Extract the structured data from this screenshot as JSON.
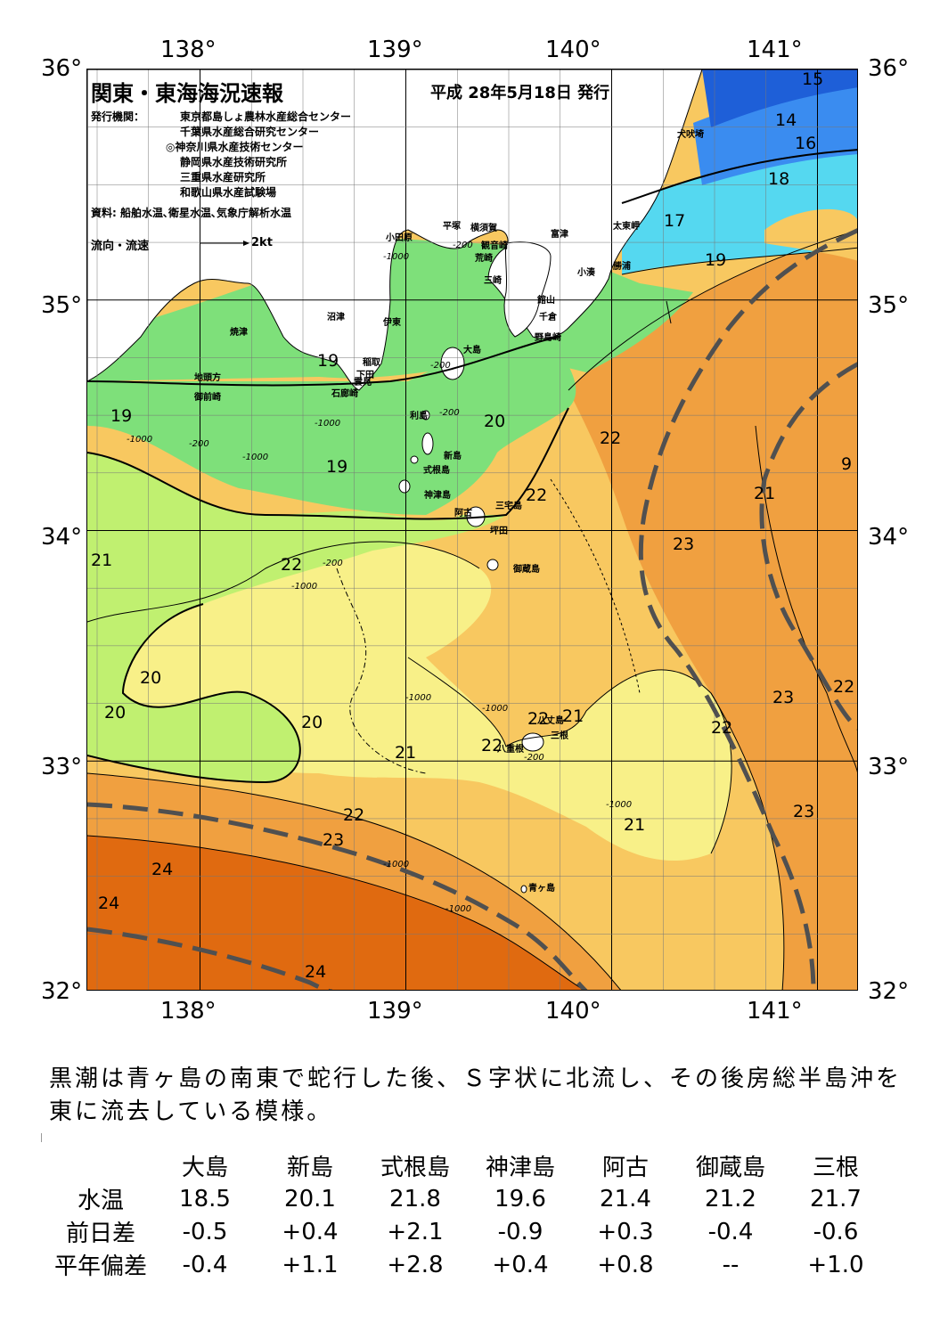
{
  "title": "関東・東海海況速報",
  "date": "平成 28年5月18日 発行",
  "issuer_label": "発行機関：",
  "issuers": [
    "東京都島しょ農林水産総合センター",
    "千葉県水産総合研究センター",
    "◎神奈川県水産技術センター",
    "静岡県水産技術研究所",
    "三重県水産研究所",
    "和歌山県水産試験場"
  ],
  "source": "資料: 船舶水温､衛星水温､気象庁解析水温",
  "legend": {
    "label": "流向・流速",
    "scale": "2kt"
  },
  "axes": {
    "lon_ticks": [
      "138°",
      "139°",
      "140°",
      "141°"
    ],
    "lat_ticks": [
      "36°",
      "35°",
      "34°",
      "33°",
      "32°"
    ]
  },
  "places": [
    {
      "name": "犬吠埼"
    },
    {
      "name": "太東岬"
    },
    {
      "name": "勝浦"
    },
    {
      "name": "小湊"
    },
    {
      "name": "富津"
    },
    {
      "name": "館山"
    },
    {
      "name": "千倉"
    },
    {
      "name": "野島崎"
    },
    {
      "name": "横須賀"
    },
    {
      "name": "観音崎"
    },
    {
      "name": "荒崎"
    },
    {
      "name": "三崎"
    },
    {
      "name": "平塚"
    },
    {
      "name": "小田原"
    },
    {
      "name": "沼津"
    },
    {
      "name": "伊東"
    },
    {
      "name": "焼津"
    },
    {
      "name": "稲取"
    },
    {
      "name": "下田"
    },
    {
      "name": "雲見"
    },
    {
      "name": "石廊崎"
    },
    {
      "name": "地頭方"
    },
    {
      "name": "御前崎"
    },
    {
      "name": "大島"
    },
    {
      "name": "利島"
    },
    {
      "name": "新島"
    },
    {
      "name": "式根島"
    },
    {
      "name": "神津島"
    },
    {
      "name": "三宅島"
    },
    {
      "name": "阿古"
    },
    {
      "name": "坪田"
    },
    {
      "name": "御蔵島"
    },
    {
      "name": "八丈島"
    },
    {
      "name": "三根"
    },
    {
      "name": "八重根"
    },
    {
      "name": "青ヶ島"
    }
  ],
  "isotherm_labels": [
    "15",
    "14",
    "16",
    "18",
    "17",
    "19",
    "19",
    "19",
    "19",
    "20",
    "22",
    "22",
    "21",
    "21",
    "9",
    "22",
    "23",
    "20",
    "20",
    "20",
    "21",
    "22",
    "21",
    "22",
    "21",
    "22",
    "23",
    "23",
    "22",
    "23",
    "24",
    "24",
    "24",
    "22"
  ],
  "depth_labels": [
    "-200",
    "-1000",
    "-200",
    "-1000",
    "-200",
    "-1000",
    "-200",
    "-1000",
    "-200",
    "-1000",
    "-1000",
    "-1000",
    "-200",
    "-1000",
    "-1000",
    "-1000"
  ],
  "colors": {
    "c15": "#1e5fd8",
    "c16": "#3a8cf0",
    "c17": "#55d8f0",
    "c19": "#7ee07a",
    "c20": "#c0f070",
    "c21": "#f8f088",
    "c22": "#f8c860",
    "c23": "#f0a040",
    "c24": "#e06a10",
    "land": "#ffffff",
    "kuroshio": "#505050"
  },
  "summary": "黒潮は青ヶ島の南東で蛇行した後、Ｓ字状に北流し、その後房総半島沖を東に流去している模様。",
  "table": {
    "columns": [
      "大島",
      "新島",
      "式根島",
      "神津島",
      "阿古",
      "御蔵島",
      "三根"
    ],
    "rows": [
      {
        "label": "水温",
        "values": [
          "18.5",
          "20.1",
          "21.8",
          "19.6",
          "21.4",
          "21.2",
          "21.7"
        ]
      },
      {
        "label": "前日差",
        "values": [
          "-0.5",
          "+0.4",
          "+2.1",
          "-0.9",
          "+0.3",
          "-0.4",
          "-0.6"
        ]
      },
      {
        "label": "平年偏差",
        "values": [
          "-0.4",
          "+1.1",
          "+2.8",
          "+0.4",
          "+0.8",
          "--",
          "+1.0"
        ]
      }
    ]
  }
}
